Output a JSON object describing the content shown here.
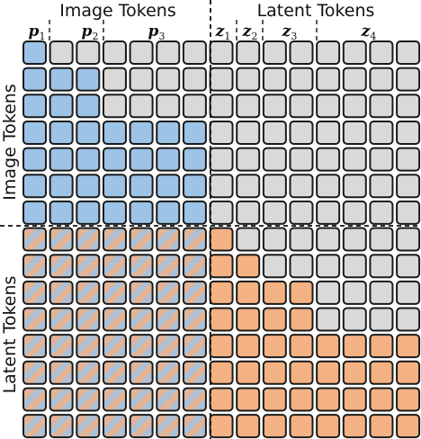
{
  "headers": {
    "image_tokens": "Image Tokens",
    "latent_tokens": "Latent Tokens"
  },
  "side_labels": {
    "image_tokens": "Image Tokens",
    "latent_tokens": "Latent Tokens"
  },
  "groups": [
    {
      "symbol": "p",
      "subscript": "1"
    },
    {
      "symbol": "p",
      "subscript": "2"
    },
    {
      "symbol": "p",
      "subscript": "3"
    },
    {
      "symbol": "z",
      "subscript": "1"
    },
    {
      "symbol": "z",
      "subscript": "2"
    },
    {
      "symbol": "z",
      "subscript": "3"
    },
    {
      "symbol": "z",
      "subscript": "4"
    }
  ],
  "colors": {
    "image": "#9dc3e6",
    "latent": "#f4b183",
    "masked": "#d9d9d9",
    "mixed_from": "#9dc3e6",
    "mixed_to": "#f4b183",
    "border": "#1a1a1a"
  },
  "matrix": {
    "legend": "B = image token (blue), L = latent token (orange), G = not attended (gray), M = image-latent mix",
    "rows": [
      "BGGGGGGGGGGGGGG",
      "BBBGGGGGGGGGGGG",
      "BBBGGGGGGGGGGGG",
      "BBBBBBBGGGGGGGG",
      "BBBBBBBGGGGGGGG",
      "BBBBBBBGGGGGGGG",
      "BBBBBBBGGGGGGGG",
      "MMMMMMMLGGGGGGG",
      "MMMMMMMLLGGGGGG",
      "MMMMMMMLLLLGGGG",
      "MMMMMMMLLLLGGGG",
      "MMMMMMMLLLLLLLL",
      "MMMMMMMLLLLLLLL",
      "MMMMMMMLLLLLLLL",
      "MMMMMMMLLLLLLLL"
    ]
  }
}
